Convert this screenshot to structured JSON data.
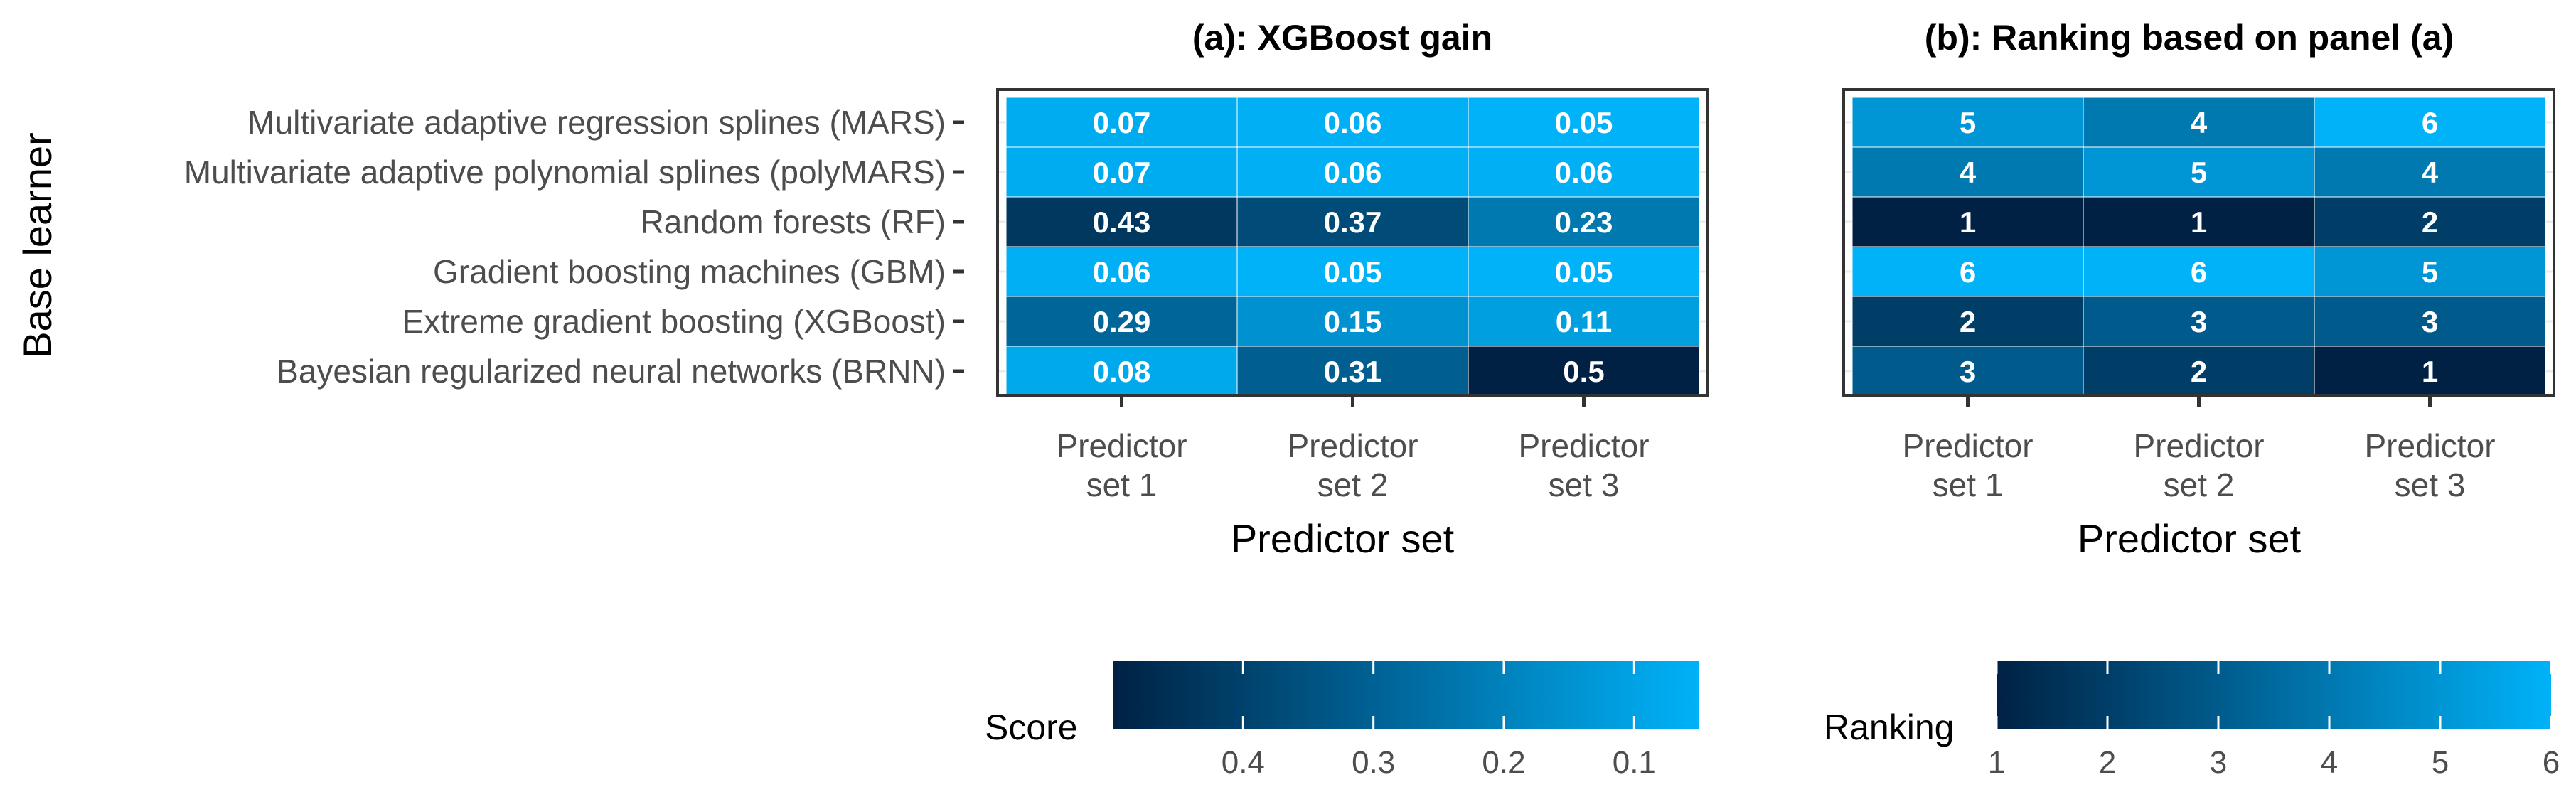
{
  "y_axis_title": "Base learner",
  "row_labels": [
    "Multivariate adaptive regression splines (MARS)",
    "Multivariate adaptive polynomial splines (polyMARS)",
    "Random forests (RF)",
    "Gradient boosting machines (GBM)",
    "Extreme gradient boosting (XGBoost)",
    "Bayesian regularized neural networks (BRNN)"
  ],
  "chart_data": [
    {
      "type": "heatmap",
      "title": "(a): XGBoost gain",
      "xlabel": "Predictor set",
      "ylabel": "Base learner",
      "categories": [
        "Predictor set 1",
        "Predictor set 2",
        "Predictor set 3"
      ],
      "category_lines": [
        [
          "Predictor",
          "set 1"
        ],
        [
          "Predictor",
          "set 2"
        ],
        [
          "Predictor",
          "set 3"
        ]
      ],
      "values": [
        [
          0.07,
          0.06,
          0.05
        ],
        [
          0.07,
          0.06,
          0.06
        ],
        [
          0.43,
          0.37,
          0.23
        ],
        [
          0.06,
          0.05,
          0.05
        ],
        [
          0.29,
          0.15,
          0.11
        ],
        [
          0.08,
          0.31,
          0.5
        ]
      ],
      "labels": [
        [
          "0.07",
          "0.06",
          "0.05"
        ],
        [
          "0.07",
          "0.06",
          "0.06"
        ],
        [
          "0.43",
          "0.37",
          "0.23"
        ],
        [
          "0.06",
          "0.05",
          "0.05"
        ],
        [
          "0.29",
          "0.15",
          "0.11"
        ],
        [
          "0.08",
          "0.31",
          "0.5"
        ]
      ],
      "legend": {
        "title": "Score",
        "domain": [
          0.5,
          0.05
        ],
        "ticks": [
          0.4,
          0.3,
          0.2,
          0.1
        ],
        "tick_labels": [
          "0.4",
          "0.3",
          "0.2",
          "0.1"
        ],
        "position": "bottom"
      }
    },
    {
      "type": "heatmap",
      "title": "(b): Ranking based on panel (a)",
      "xlabel": "Predictor set",
      "categories": [
        "Predictor set 1",
        "Predictor set 2",
        "Predictor set 3"
      ],
      "category_lines": [
        [
          "Predictor",
          "set 1"
        ],
        [
          "Predictor",
          "set 2"
        ],
        [
          "Predictor",
          "set 3"
        ]
      ],
      "values": [
        [
          5,
          4,
          6
        ],
        [
          4,
          5,
          4
        ],
        [
          1,
          1,
          2
        ],
        [
          6,
          6,
          5
        ],
        [
          2,
          3,
          3
        ],
        [
          3,
          2,
          1
        ]
      ],
      "labels": [
        [
          "5",
          "4",
          "6"
        ],
        [
          "4",
          "5",
          "4"
        ],
        [
          "1",
          "1",
          "2"
        ],
        [
          "6",
          "6",
          "5"
        ],
        [
          "2",
          "3",
          "3"
        ],
        [
          "3",
          "2",
          "1"
        ]
      ],
      "legend": {
        "title": "Ranking",
        "domain": [
          1,
          6
        ],
        "ticks": [
          1,
          2,
          3,
          4,
          5,
          6
        ],
        "tick_labels": [
          "1",
          "2",
          "3",
          "4",
          "5",
          "6"
        ],
        "position": "bottom"
      }
    }
  ],
  "colors": {
    "low_end": "#002144",
    "high_end": "#00B2F8",
    "cell_text": "#ffffff",
    "axis_text": "#4D4D4D",
    "title_text": "#000000",
    "panel_border": "#333333"
  }
}
